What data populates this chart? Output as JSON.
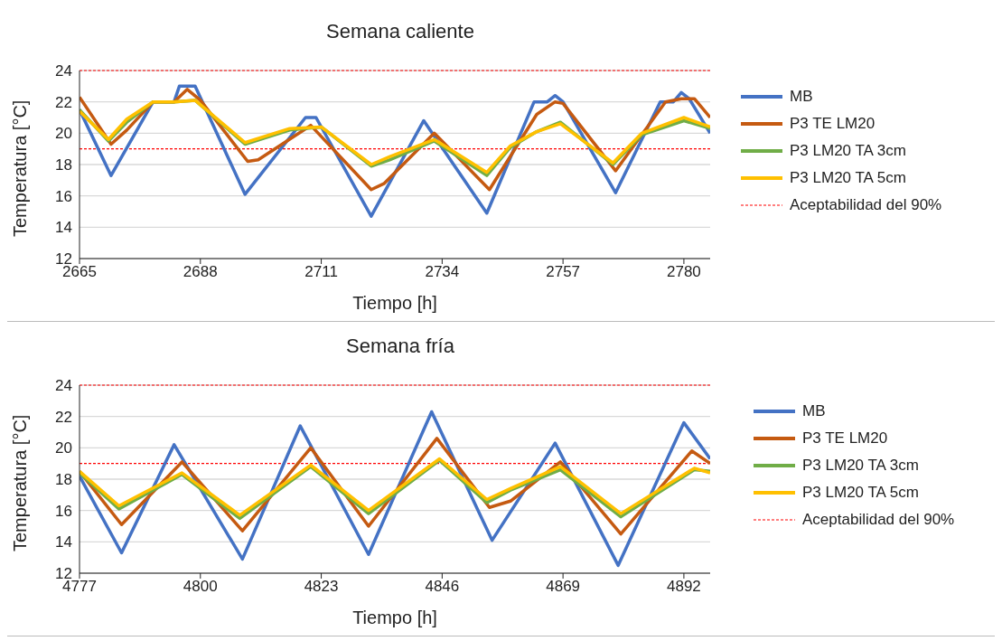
{
  "chart_data": [
    {
      "type": "line",
      "title": "Semana caliente",
      "xlabel": "Tiempo [h]",
      "ylabel": "Temperatura [°C]",
      "xlim": [
        2665,
        2785
      ],
      "xticks": [
        2665,
        2688,
        2711,
        2734,
        2757,
        2780
      ],
      "ylim": [
        12,
        24
      ],
      "yticks": [
        12,
        14,
        16,
        18,
        20,
        22,
        24
      ],
      "grid": "y",
      "legend": "right",
      "marker": "none",
      "line_style": "solid",
      "series": [
        {
          "name": "MB",
          "color": "#4472c4",
          "x": [
            2665,
            2671,
            2679,
            2683,
            2684,
            2687,
            2696.5,
            2708,
            2710,
            2720.5,
            2730.5,
            2742.5,
            2751.5,
            2754,
            2755.5,
            2757,
            2767,
            2775.5,
            2778,
            2779.5,
            2781,
            2785
          ],
          "values": [
            21.5,
            17.3,
            22,
            22,
            23,
            23,
            16.1,
            21,
            21,
            14.7,
            20.8,
            14.9,
            22,
            22,
            22.4,
            22,
            16.2,
            22,
            22,
            22.6,
            22.2,
            20
          ]
        },
        {
          "name": "P3 TE LM20",
          "color": "#c55a11",
          "x": [
            2665,
            2671,
            2674,
            2679,
            2683,
            2685.5,
            2688,
            2697,
            2699,
            2709,
            2720.5,
            2723,
            2732.5,
            2743,
            2752,
            2755.5,
            2757,
            2767,
            2776.5,
            2779.5,
            2782,
            2785
          ],
          "values": [
            22.3,
            19.3,
            20.2,
            22,
            22,
            22.8,
            22.1,
            18.2,
            18.3,
            20.5,
            16.4,
            16.8,
            20,
            16.4,
            21.2,
            22,
            21.9,
            17.6,
            22,
            22.2,
            22.2,
            21
          ]
        },
        {
          "name": "P3 LM20 TA 3cm",
          "color": "#70ad47",
          "x": [
            2665,
            2670.5,
            2674,
            2679,
            2683,
            2687,
            2696.5,
            2705,
            2711,
            2720.5,
            2724,
            2732.5,
            2742.5,
            2747,
            2752,
            2756.5,
            2766.5,
            2772,
            2780,
            2785
          ],
          "values": [
            21.5,
            19.5,
            20.7,
            22,
            22,
            22.1,
            19.3,
            20.2,
            20.4,
            17.9,
            18.3,
            19.5,
            17.3,
            19.1,
            20.1,
            20.7,
            18,
            19.9,
            20.8,
            20.3
          ]
        },
        {
          "name": "P3 LM20 TA 5cm",
          "color": "#ffc000",
          "x": [
            2665,
            2670.5,
            2674,
            2679,
            2683,
            2687,
            2696.5,
            2705,
            2711,
            2720.5,
            2724,
            2732.5,
            2742.5,
            2747,
            2752,
            2756.5,
            2766.5,
            2772,
            2780,
            2785
          ],
          "values": [
            21.4,
            19.6,
            20.9,
            22,
            22,
            22.1,
            19.4,
            20.3,
            20.4,
            18,
            18.5,
            19.6,
            17.5,
            19.2,
            20.1,
            20.6,
            18.1,
            20,
            21,
            20.4
          ]
        }
      ],
      "ref_lines": [
        {
          "axis": "y",
          "value": 24,
          "label": "Aceptabilidad del 90%",
          "color": "#ff0000",
          "line_style": "dotted"
        },
        {
          "axis": "y",
          "value": 19,
          "color": "#ff0000",
          "line_style": "dotted"
        }
      ]
    },
    {
      "type": "line",
      "title": "Semana fría",
      "xlabel": "Tiempo [h]",
      "ylabel": "Temperatura [°C]",
      "xlim": [
        4777,
        4897
      ],
      "xticks": [
        4777,
        4800,
        4823,
        4846,
        4869,
        4892
      ],
      "ylim": [
        12,
        24
      ],
      "yticks": [
        12,
        14,
        16,
        18,
        20,
        22,
        24
      ],
      "grid": "y",
      "legend": "right",
      "marker": "none",
      "line_style": "solid",
      "series": [
        {
          "name": "MB",
          "color": "#4472c4",
          "x": [
            4777,
            4785,
            4795,
            4808,
            4819,
            4832,
            4844,
            4855.5,
            4867.5,
            4879.5,
            4892,
            4897
          ],
          "values": [
            18.2,
            13.3,
            20.2,
            12.9,
            21.4,
            13.2,
            22.3,
            14.1,
            20.3,
            12.5,
            21.6,
            19.3
          ]
        },
        {
          "name": "P3 TE LM20",
          "color": "#c55a11",
          "x": [
            4777,
            4785,
            4796.5,
            4808,
            4821,
            4832,
            4845,
            4855,
            4859,
            4868.5,
            4880,
            4893.5,
            4897
          ],
          "values": [
            18.5,
            15.1,
            19.1,
            14.7,
            20,
            15,
            20.6,
            16.2,
            16.6,
            19.1,
            14.5,
            19.8,
            19
          ]
        },
        {
          "name": "P3 LM20 TA 3cm",
          "color": "#70ad47",
          "x": [
            4777,
            4784.5,
            4796.5,
            4807.5,
            4821,
            4832,
            4845.5,
            4854.5,
            4859,
            4868.5,
            4880,
            4894,
            4897
          ],
          "values": [
            18.4,
            16.1,
            18.3,
            15.5,
            18.8,
            15.8,
            19.2,
            16.5,
            17.3,
            18.6,
            15.6,
            18.6,
            18.5
          ]
        },
        {
          "name": "P3 LM20 TA 5cm",
          "color": "#ffc000",
          "x": [
            4777,
            4784.5,
            4796.5,
            4807.5,
            4821,
            4832,
            4845.5,
            4854.5,
            4859,
            4868.5,
            4880,
            4894,
            4897
          ],
          "values": [
            18.5,
            16.3,
            18.4,
            15.7,
            18.9,
            16,
            19.3,
            16.7,
            17.4,
            18.8,
            15.8,
            18.7,
            18.4
          ]
        }
      ],
      "ref_lines": [
        {
          "axis": "y",
          "value": 24,
          "label": "Aceptabilidad del 90%",
          "color": "#ff0000",
          "line_style": "dotted"
        },
        {
          "axis": "y",
          "value": 19,
          "color": "#ff0000",
          "line_style": "dotted"
        }
      ]
    }
  ]
}
